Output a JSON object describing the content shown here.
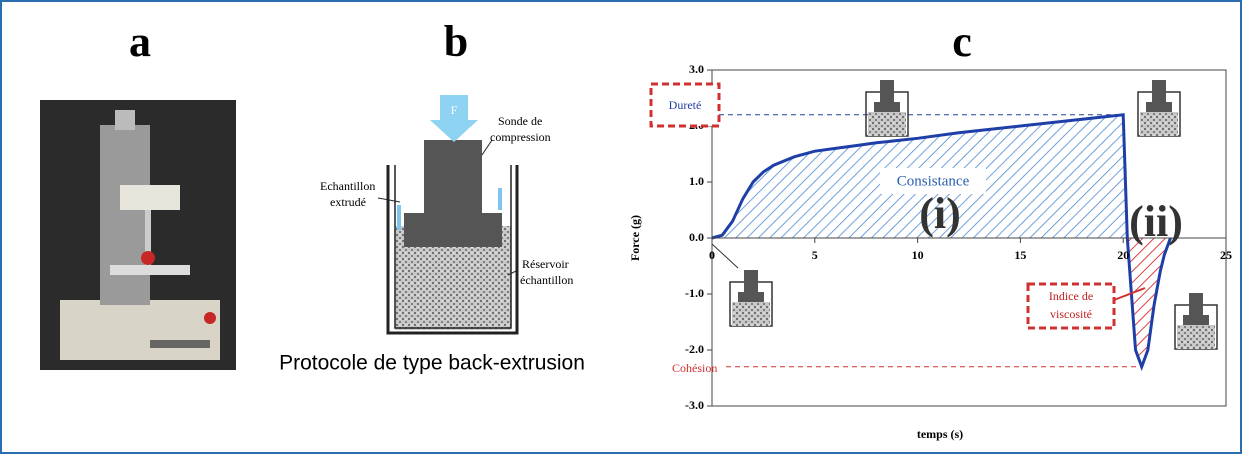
{
  "panels": {
    "a": {
      "label": "a"
    },
    "b": {
      "label": "b",
      "force": "F",
      "probe": [
        "Sonde de",
        "compression"
      ],
      "extruded": [
        "Echantillon",
        "extrudé"
      ],
      "reservoir": [
        "Réservoir",
        "échantillon"
      ],
      "caption": "Protocole de type back-extrusion"
    }
  },
  "chart_data": {
    "type": "line",
    "title": "c",
    "x_label": "temps (s)",
    "y_label": "Force (g)",
    "x": [
      0,
      0.5,
      1,
      1.5,
      2,
      2.5,
      3,
      4,
      5,
      6,
      7,
      8,
      10,
      12,
      15,
      18,
      20,
      20.2,
      20.4,
      20.6,
      20.9,
      21.2,
      21.5,
      21.8,
      22,
      22.3
    ],
    "values": [
      0,
      0.05,
      0.3,
      0.7,
      1.0,
      1.18,
      1.3,
      1.45,
      1.55,
      1.6,
      1.65,
      1.7,
      1.78,
      1.88,
      2.0,
      2.12,
      2.2,
      0,
      -1.0,
      -2.0,
      -2.3,
      -2.0,
      -1.2,
      -0.6,
      -0.3,
      0
    ],
    "color": "#1f3fa8",
    "xlim": [
      0,
      25
    ],
    "ylim": [
      -3,
      3
    ],
    "xticks": [
      0,
      5,
      10,
      15,
      20,
      25
    ],
    "yticks": [
      {
        "value": 3,
        "label": "3.0"
      },
      {
        "value": 2,
        "label": "2.0"
      },
      {
        "value": 1,
        "label": "1.0"
      },
      {
        "value": 0,
        "label": "0.0"
      },
      {
        "value": -1,
        "label": "-1.0"
      },
      {
        "value": -2,
        "label": "-2.0"
      },
      {
        "value": -3,
        "label": "-3.0"
      }
    ],
    "annotations": {
      "hardness": "Dureté",
      "consistency": "Consistance",
      "region_i": "(i)",
      "region_ii": "(ii)",
      "viscosity": [
        "Indice de",
        "viscosité"
      ],
      "cohesion": "Cohésion"
    }
  }
}
